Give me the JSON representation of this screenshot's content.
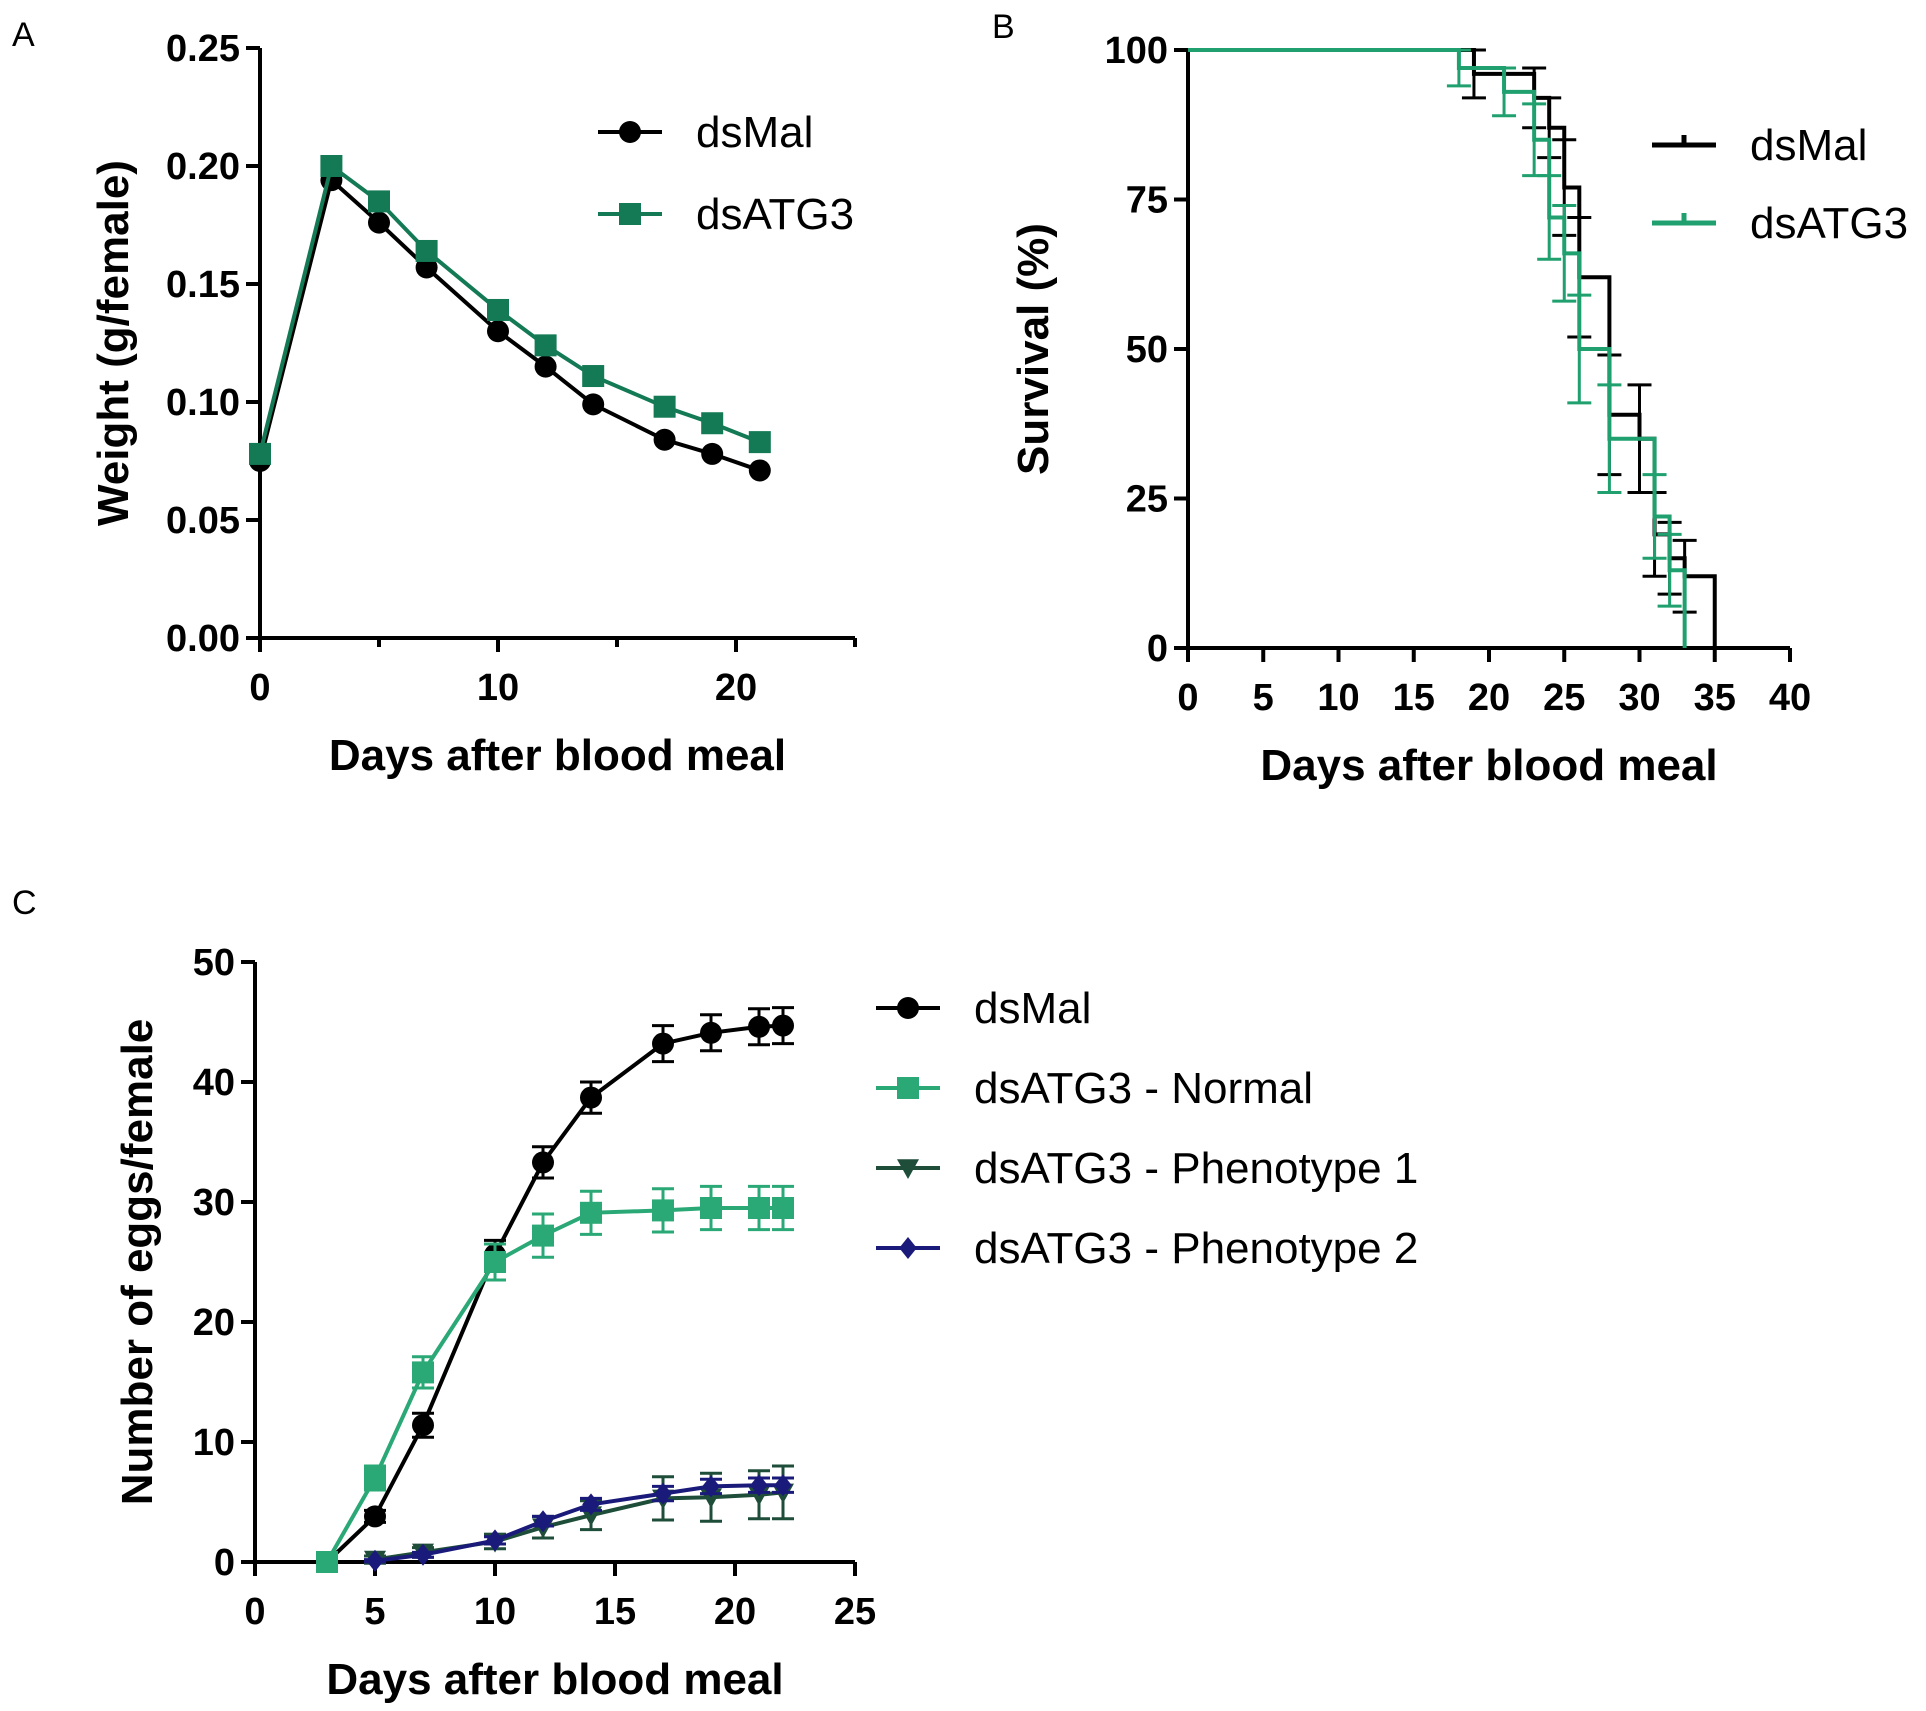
{
  "chart_data": [
    {
      "panel": "A",
      "type": "line",
      "xlabel": "Days after blood meal",
      "ylabel": "Weight  (g/female)",
      "xlim": [
        0,
        25
      ],
      "ylim": [
        0,
        0.25
      ],
      "xticks": [
        "0",
        "10",
        "20"
      ],
      "xtick_values": [
        0,
        10,
        20
      ],
      "yticks": [
        "0.00",
        "0.05",
        "0.10",
        "0.15",
        "0.20",
        "0.25"
      ],
      "ytick_values": [
        0,
        0.05,
        0.1,
        0.15,
        0.2,
        0.25
      ],
      "legend_position": "top-right",
      "series": [
        {
          "name": "dsMal",
          "color": "#000000",
          "marker": "circle",
          "x": [
            0,
            3,
            5,
            7,
            10,
            12,
            14,
            17,
            19,
            21
          ],
          "y": [
            0.075,
            0.194,
            0.176,
            0.157,
            0.13,
            0.115,
            0.099,
            0.084,
            0.078,
            0.071
          ]
        },
        {
          "name": "dsATG3",
          "color": "#137a55",
          "marker": "square",
          "x": [
            0,
            3,
            5,
            7,
            10,
            12,
            14,
            17,
            19,
            21
          ],
          "y": [
            0.078,
            0.2,
            0.185,
            0.164,
            0.139,
            0.124,
            0.111,
            0.098,
            0.091,
            0.083
          ]
        }
      ]
    },
    {
      "panel": "B",
      "type": "step",
      "xlabel": "Days after blood meal",
      "ylabel": "Survival (%)",
      "xlim": [
        0,
        40
      ],
      "ylim": [
        0,
        100
      ],
      "xticks": [
        "0",
        "5",
        "10",
        "15",
        "20",
        "25",
        "30",
        "35",
        "40"
      ],
      "xtick_values": [
        0,
        5,
        10,
        15,
        20,
        25,
        30,
        35,
        40
      ],
      "yticks": [
        "0",
        "25",
        "50",
        "75",
        "100"
      ],
      "ytick_values": [
        0,
        25,
        50,
        75,
        100
      ],
      "legend_position": "top-right",
      "series": [
        {
          "name": "dsMal",
          "color": "#000000",
          "x": [
            0,
            19,
            23,
            24,
            25,
            26,
            28,
            30,
            31,
            32,
            33,
            35
          ],
          "y": [
            100,
            96,
            92,
            87,
            77,
            62,
            39,
            35,
            19,
            15,
            12,
            0
          ],
          "err": [
            0,
            4,
            5,
            5,
            8,
            10,
            10,
            9,
            7,
            6,
            6,
            0
          ]
        },
        {
          "name": "dsATG3",
          "color": "#1fa06e",
          "x": [
            0,
            18,
            21,
            23,
            24,
            25,
            26,
            28,
            31,
            32,
            33
          ],
          "y": [
            100,
            97,
            93,
            85,
            72,
            66,
            50,
            35,
            22,
            13,
            0
          ],
          "err": [
            0,
            3,
            4,
            6,
            7,
            8,
            9,
            9,
            7,
            6,
            0
          ]
        }
      ]
    },
    {
      "panel": "C",
      "type": "line",
      "xlabel": "Days after blood meal",
      "ylabel": "Number of eggs/female",
      "xlim": [
        0,
        25
      ],
      "ylim": [
        0,
        50
      ],
      "xticks": [
        "0",
        "5",
        "10",
        "15",
        "20",
        "25"
      ],
      "xtick_values": [
        0,
        5,
        10,
        15,
        20,
        25
      ],
      "yticks": [
        "0",
        "10",
        "20",
        "30",
        "40",
        "50"
      ],
      "ytick_values": [
        0,
        10,
        20,
        30,
        40,
        50
      ],
      "legend_position": "right",
      "series": [
        {
          "name": "dsMal",
          "color": "#000000",
          "marker": "circle",
          "x": [
            3,
            5,
            7,
            10,
            12,
            14,
            17,
            19,
            21,
            22
          ],
          "y": [
            0,
            3.8,
            11.4,
            25.6,
            33.3,
            38.7,
            43.2,
            44.1,
            44.6,
            44.7
          ],
          "err": [
            0,
            0.5,
            1.0,
            1.2,
            1.3,
            1.3,
            1.5,
            1.5,
            1.5,
            1.5
          ]
        },
        {
          "name": "dsATG3 - Normal",
          "color": "#2aa876",
          "marker": "square",
          "x": [
            3,
            5,
            7,
            10,
            12,
            14,
            17,
            19,
            21,
            22
          ],
          "y": [
            0,
            7.0,
            15.8,
            25.0,
            27.2,
            29.1,
            29.3,
            29.5,
            29.5,
            29.5
          ],
          "err": [
            0,
            1.0,
            1.3,
            1.5,
            1.8,
            1.8,
            1.8,
            1.8,
            1.8,
            1.8
          ]
        },
        {
          "name": "dsATG3 - Phenotype 1",
          "color": "#1e4d3a",
          "marker": "triangle-down",
          "x": [
            5,
            7,
            10,
            12,
            14,
            17,
            19,
            21,
            22
          ],
          "y": [
            0.2,
            0.8,
            1.7,
            2.9,
            3.9,
            5.3,
            5.4,
            5.6,
            5.8
          ],
          "err": [
            0.3,
            0.4,
            0.6,
            0.9,
            1.2,
            1.8,
            2.0,
            2.0,
            2.2
          ]
        },
        {
          "name": "dsATG3 - Phenotype 2",
          "color": "#1a1a7a",
          "marker": "diamond",
          "x": [
            5,
            7,
            10,
            12,
            14,
            17,
            19,
            21,
            22
          ],
          "y": [
            0.1,
            0.6,
            1.8,
            3.4,
            4.8,
            5.7,
            6.3,
            6.4,
            6.4
          ],
          "err": [
            0.1,
            0.2,
            0.3,
            0.4,
            0.5,
            0.6,
            0.6,
            0.6,
            0.6
          ]
        }
      ]
    }
  ],
  "panel_labels": {
    "a": "A",
    "b": "B",
    "c": "C"
  }
}
